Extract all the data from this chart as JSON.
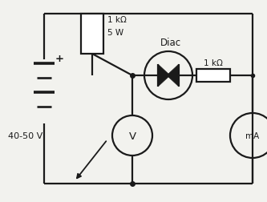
{
  "bg_color": "#f2f2ee",
  "line_color": "#1a1a1a",
  "battery_label": "40-50 V",
  "battery_plus": "+",
  "rheostat_label1": "1 kΩ",
  "rheostat_label2": "5 W",
  "diac_label": "Diac",
  "resistor_label": "1 kΩ",
  "voltmeter_label": "V",
  "ammeter_label": "mA",
  "lw": 1.6,
  "font_size": 8.5
}
